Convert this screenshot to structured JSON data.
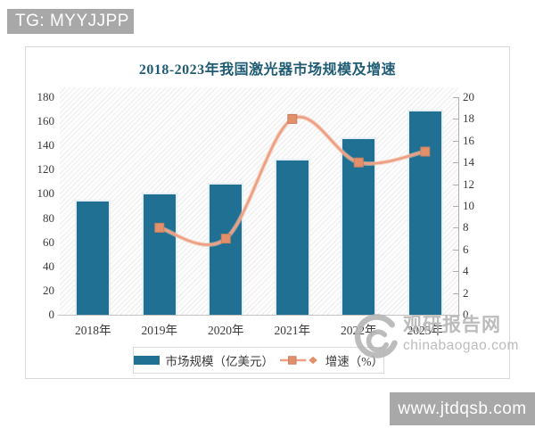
{
  "overlays": {
    "tg_label": "TG: MYYJJPP",
    "site_label": "www.jtdqsb.com"
  },
  "watermark": {
    "logo": "swirl-icon",
    "name": "观研报告网",
    "domain": "chinabaogao.com"
  },
  "colors": {
    "bar": "#1f7092",
    "line": "#eda184",
    "marker_fill": "#e2906c",
    "marker_edge": "#c87f5e",
    "title": "#1f5b73",
    "overlay_gray": "#a8a8a8",
    "watermark_gray": "#b3b3b3"
  },
  "chart_data": {
    "type": "combo-bar-line",
    "title": "2018-2023年我国激光器市场规模及增速",
    "categories": [
      "2018年",
      "2019年",
      "2020年",
      "2021年",
      "2022年",
      "2023年"
    ],
    "series": [
      {
        "name": "市场规模（亿美元）",
        "type": "bar",
        "axis": "left",
        "color": "#1f7092",
        "values": [
          95,
          101,
          109,
          129,
          147,
          170
        ]
      },
      {
        "name": "增速（%）",
        "type": "line",
        "axis": "right",
        "color": "#eda184",
        "marker": "square",
        "values": [
          null,
          8,
          7,
          18,
          14,
          15
        ]
      }
    ],
    "left_axis": {
      "min": 0,
      "max": 180,
      "step": 20
    },
    "right_axis": {
      "min": 0,
      "max": 20,
      "step": 2
    },
    "legend_position": "bottom",
    "grid": false,
    "plot_background": "diagonal-hatch"
  }
}
